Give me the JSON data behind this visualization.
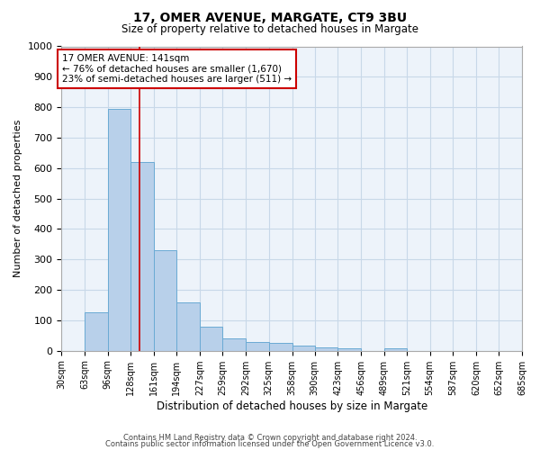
{
  "title1": "17, OMER AVENUE, MARGATE, CT9 3BU",
  "title2": "Size of property relative to detached houses in Margate",
  "xlabel": "Distribution of detached houses by size in Margate",
  "ylabel": "Number of detached properties",
  "bin_edges": [
    30,
    63,
    96,
    128,
    161,
    194,
    227,
    259,
    292,
    325,
    358,
    390,
    423,
    456,
    489,
    521,
    554,
    587,
    620,
    652,
    685
  ],
  "bar_heights": [
    0,
    125,
    795,
    620,
    330,
    160,
    78,
    40,
    30,
    25,
    18,
    12,
    8,
    0,
    8,
    0,
    0,
    0,
    0,
    0
  ],
  "bar_color": "#b8d0ea",
  "bar_edge_color": "#6aaad4",
  "grid_color": "#c8d8e8",
  "bg_color": "#edf3fa",
  "red_line_x": 141,
  "red_line_color": "#cc0000",
  "ylim": [
    0,
    1000
  ],
  "yticks": [
    0,
    100,
    200,
    300,
    400,
    500,
    600,
    700,
    800,
    900,
    1000
  ],
  "xtick_labels": [
    "30sqm",
    "63sqm",
    "96sqm",
    "128sqm",
    "161sqm",
    "194sqm",
    "227sqm",
    "259sqm",
    "292sqm",
    "325sqm",
    "358sqm",
    "390sqm",
    "423sqm",
    "456sqm",
    "489sqm",
    "521sqm",
    "554sqm",
    "587sqm",
    "620sqm",
    "652sqm",
    "685sqm"
  ],
  "annotation_text": "17 OMER AVENUE: 141sqm\n← 76% of detached houses are smaller (1,670)\n23% of semi-detached houses are larger (511) →",
  "annotation_box_color": "#cc0000",
  "footer1": "Contains HM Land Registry data © Crown copyright and database right 2024.",
  "footer2": "Contains public sector information licensed under the Open Government Licence v3.0."
}
